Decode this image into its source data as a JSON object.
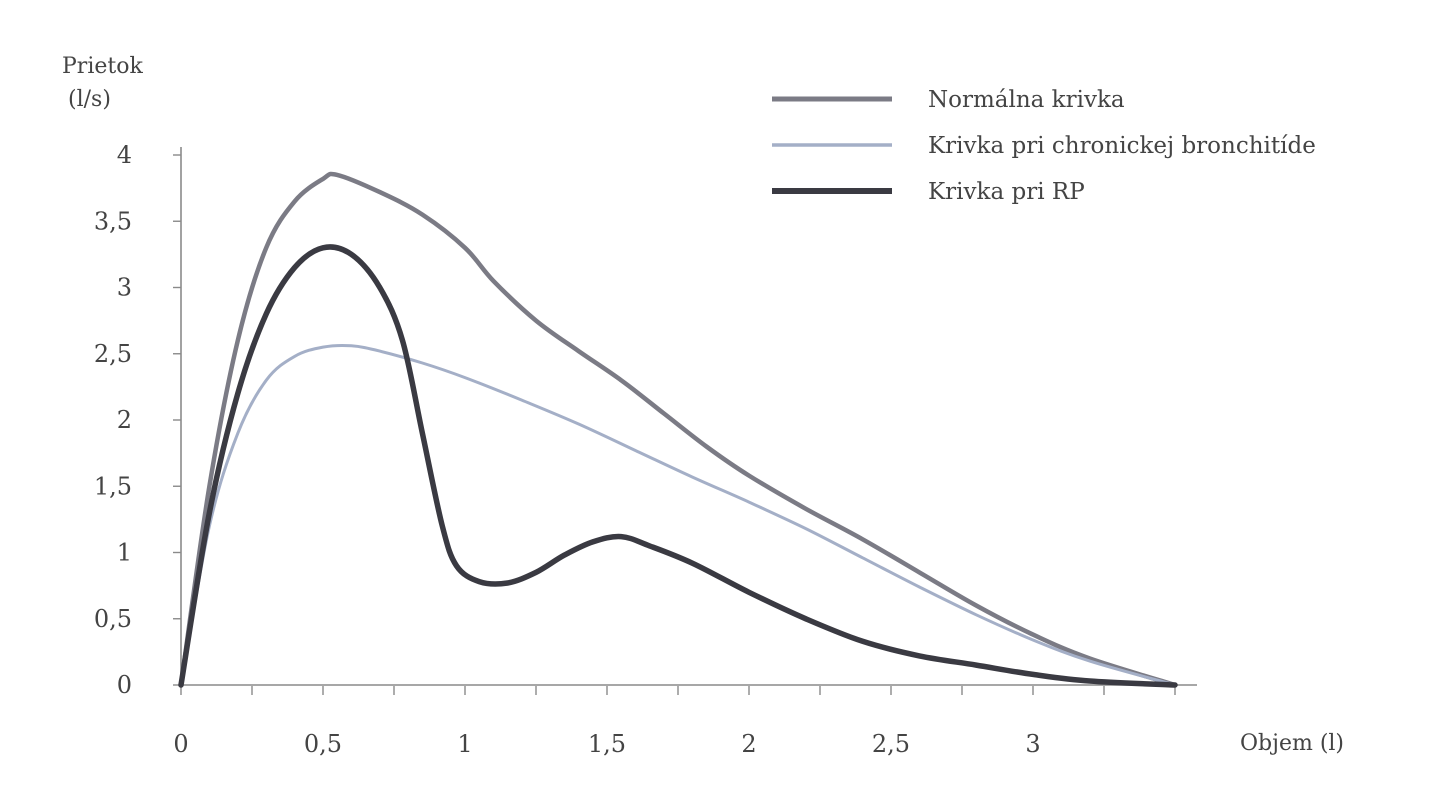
{
  "chart_data": {
    "type": "line",
    "ylabel": [
      "Prietok",
      "(l/s)"
    ],
    "xlabel": "Objem (l)",
    "xlim": [
      0,
      3.5
    ],
    "ylim": [
      0,
      4
    ],
    "x_ticks": [
      0,
      0.5,
      1,
      1.5,
      2,
      2.5,
      3
    ],
    "x_tick_labels": [
      "0",
      "0,5",
      "1",
      "1,5",
      "2",
      "2,5",
      "3"
    ],
    "x_minor_step": 0.25,
    "y_ticks": [
      0,
      0.5,
      1,
      1.5,
      2,
      2.5,
      3,
      3.5,
      4
    ],
    "y_tick_labels": [
      "0",
      "0,5",
      "1",
      "1,5",
      "2",
      "2,5",
      "3",
      "3,5",
      "4"
    ],
    "grid": false,
    "legend_position": "top-right",
    "series": [
      {
        "name": "Normálna krivka",
        "color": "#7b7b85",
        "stroke": "medium",
        "points": [
          [
            0,
            0
          ],
          [
            0.1,
            1.5
          ],
          [
            0.2,
            2.6
          ],
          [
            0.3,
            3.3
          ],
          [
            0.4,
            3.65
          ],
          [
            0.5,
            3.82
          ],
          [
            0.55,
            3.85
          ],
          [
            0.7,
            3.72
          ],
          [
            0.85,
            3.55
          ],
          [
            1.0,
            3.3
          ],
          [
            1.1,
            3.05
          ],
          [
            1.25,
            2.75
          ],
          [
            1.4,
            2.52
          ],
          [
            1.55,
            2.3
          ],
          [
            1.7,
            2.05
          ],
          [
            1.85,
            1.8
          ],
          [
            2.0,
            1.58
          ],
          [
            2.2,
            1.33
          ],
          [
            2.4,
            1.1
          ],
          [
            2.6,
            0.85
          ],
          [
            2.8,
            0.6
          ],
          [
            3.0,
            0.38
          ],
          [
            3.2,
            0.2
          ],
          [
            3.5,
            0
          ]
        ]
      },
      {
        "name": "Krivka pri chronickej bronchitíde",
        "color": "#a4afc7",
        "stroke": "thin",
        "points": [
          [
            0,
            0
          ],
          [
            0.1,
            1.2
          ],
          [
            0.2,
            1.9
          ],
          [
            0.3,
            2.3
          ],
          [
            0.4,
            2.48
          ],
          [
            0.5,
            2.55
          ],
          [
            0.6,
            2.56
          ],
          [
            0.7,
            2.52
          ],
          [
            0.85,
            2.43
          ],
          [
            1.0,
            2.32
          ],
          [
            1.2,
            2.15
          ],
          [
            1.4,
            1.97
          ],
          [
            1.6,
            1.77
          ],
          [
            1.8,
            1.57
          ],
          [
            2.0,
            1.38
          ],
          [
            2.2,
            1.18
          ],
          [
            2.4,
            0.96
          ],
          [
            2.6,
            0.74
          ],
          [
            2.8,
            0.53
          ],
          [
            3.0,
            0.34
          ],
          [
            3.2,
            0.18
          ],
          [
            3.5,
            0
          ]
        ]
      },
      {
        "name": "Krivka pri RP",
        "color": "#3a3a42",
        "stroke": "thick",
        "points": [
          [
            0,
            0
          ],
          [
            0.1,
            1.3
          ],
          [
            0.2,
            2.2
          ],
          [
            0.3,
            2.8
          ],
          [
            0.4,
            3.15
          ],
          [
            0.5,
            3.3
          ],
          [
            0.6,
            3.25
          ],
          [
            0.7,
            3.0
          ],
          [
            0.78,
            2.6
          ],
          [
            0.85,
            1.9
          ],
          [
            0.92,
            1.2
          ],
          [
            0.97,
            0.9
          ],
          [
            1.05,
            0.78
          ],
          [
            1.15,
            0.77
          ],
          [
            1.25,
            0.85
          ],
          [
            1.35,
            0.98
          ],
          [
            1.45,
            1.08
          ],
          [
            1.55,
            1.12
          ],
          [
            1.65,
            1.05
          ],
          [
            1.8,
            0.92
          ],
          [
            2.0,
            0.7
          ],
          [
            2.2,
            0.5
          ],
          [
            2.4,
            0.33
          ],
          [
            2.6,
            0.22
          ],
          [
            2.8,
            0.15
          ],
          [
            3.0,
            0.08
          ],
          [
            3.2,
            0.03
          ],
          [
            3.5,
            0
          ]
        ]
      }
    ]
  }
}
